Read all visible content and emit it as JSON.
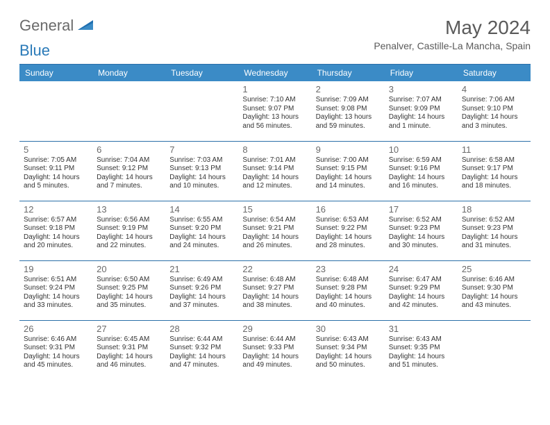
{
  "logo": {
    "text1": "General",
    "text2": "Blue"
  },
  "title": "May 2024",
  "location": "Penalver, Castille-La Mancha, Spain",
  "colors": {
    "header_bg": "#3b8bc6",
    "header_text": "#ffffff",
    "rule": "#2a6fa8",
    "body_text": "#333333",
    "muted": "#6a6a6a",
    "logo_blue": "#2a7ab8"
  },
  "weekdays": [
    "Sunday",
    "Monday",
    "Tuesday",
    "Wednesday",
    "Thursday",
    "Friday",
    "Saturday"
  ],
  "weeks": [
    [
      null,
      null,
      null,
      {
        "n": "1",
        "sr": "Sunrise: 7:10 AM",
        "ss": "Sunset: 9:07 PM",
        "dl": "Daylight: 13 hours and 56 minutes."
      },
      {
        "n": "2",
        "sr": "Sunrise: 7:09 AM",
        "ss": "Sunset: 9:08 PM",
        "dl": "Daylight: 13 hours and 59 minutes."
      },
      {
        "n": "3",
        "sr": "Sunrise: 7:07 AM",
        "ss": "Sunset: 9:09 PM",
        "dl": "Daylight: 14 hours and 1 minute."
      },
      {
        "n": "4",
        "sr": "Sunrise: 7:06 AM",
        "ss": "Sunset: 9:10 PM",
        "dl": "Daylight: 14 hours and 3 minutes."
      }
    ],
    [
      {
        "n": "5",
        "sr": "Sunrise: 7:05 AM",
        "ss": "Sunset: 9:11 PM",
        "dl": "Daylight: 14 hours and 5 minutes."
      },
      {
        "n": "6",
        "sr": "Sunrise: 7:04 AM",
        "ss": "Sunset: 9:12 PM",
        "dl": "Daylight: 14 hours and 7 minutes."
      },
      {
        "n": "7",
        "sr": "Sunrise: 7:03 AM",
        "ss": "Sunset: 9:13 PM",
        "dl": "Daylight: 14 hours and 10 minutes."
      },
      {
        "n": "8",
        "sr": "Sunrise: 7:01 AM",
        "ss": "Sunset: 9:14 PM",
        "dl": "Daylight: 14 hours and 12 minutes."
      },
      {
        "n": "9",
        "sr": "Sunrise: 7:00 AM",
        "ss": "Sunset: 9:15 PM",
        "dl": "Daylight: 14 hours and 14 minutes."
      },
      {
        "n": "10",
        "sr": "Sunrise: 6:59 AM",
        "ss": "Sunset: 9:16 PM",
        "dl": "Daylight: 14 hours and 16 minutes."
      },
      {
        "n": "11",
        "sr": "Sunrise: 6:58 AM",
        "ss": "Sunset: 9:17 PM",
        "dl": "Daylight: 14 hours and 18 minutes."
      }
    ],
    [
      {
        "n": "12",
        "sr": "Sunrise: 6:57 AM",
        "ss": "Sunset: 9:18 PM",
        "dl": "Daylight: 14 hours and 20 minutes."
      },
      {
        "n": "13",
        "sr": "Sunrise: 6:56 AM",
        "ss": "Sunset: 9:19 PM",
        "dl": "Daylight: 14 hours and 22 minutes."
      },
      {
        "n": "14",
        "sr": "Sunrise: 6:55 AM",
        "ss": "Sunset: 9:20 PM",
        "dl": "Daylight: 14 hours and 24 minutes."
      },
      {
        "n": "15",
        "sr": "Sunrise: 6:54 AM",
        "ss": "Sunset: 9:21 PM",
        "dl": "Daylight: 14 hours and 26 minutes."
      },
      {
        "n": "16",
        "sr": "Sunrise: 6:53 AM",
        "ss": "Sunset: 9:22 PM",
        "dl": "Daylight: 14 hours and 28 minutes."
      },
      {
        "n": "17",
        "sr": "Sunrise: 6:52 AM",
        "ss": "Sunset: 9:23 PM",
        "dl": "Daylight: 14 hours and 30 minutes."
      },
      {
        "n": "18",
        "sr": "Sunrise: 6:52 AM",
        "ss": "Sunset: 9:23 PM",
        "dl": "Daylight: 14 hours and 31 minutes."
      }
    ],
    [
      {
        "n": "19",
        "sr": "Sunrise: 6:51 AM",
        "ss": "Sunset: 9:24 PM",
        "dl": "Daylight: 14 hours and 33 minutes."
      },
      {
        "n": "20",
        "sr": "Sunrise: 6:50 AM",
        "ss": "Sunset: 9:25 PM",
        "dl": "Daylight: 14 hours and 35 minutes."
      },
      {
        "n": "21",
        "sr": "Sunrise: 6:49 AM",
        "ss": "Sunset: 9:26 PM",
        "dl": "Daylight: 14 hours and 37 minutes."
      },
      {
        "n": "22",
        "sr": "Sunrise: 6:48 AM",
        "ss": "Sunset: 9:27 PM",
        "dl": "Daylight: 14 hours and 38 minutes."
      },
      {
        "n": "23",
        "sr": "Sunrise: 6:48 AM",
        "ss": "Sunset: 9:28 PM",
        "dl": "Daylight: 14 hours and 40 minutes."
      },
      {
        "n": "24",
        "sr": "Sunrise: 6:47 AM",
        "ss": "Sunset: 9:29 PM",
        "dl": "Daylight: 14 hours and 42 minutes."
      },
      {
        "n": "25",
        "sr": "Sunrise: 6:46 AM",
        "ss": "Sunset: 9:30 PM",
        "dl": "Daylight: 14 hours and 43 minutes."
      }
    ],
    [
      {
        "n": "26",
        "sr": "Sunrise: 6:46 AM",
        "ss": "Sunset: 9:31 PM",
        "dl": "Daylight: 14 hours and 45 minutes."
      },
      {
        "n": "27",
        "sr": "Sunrise: 6:45 AM",
        "ss": "Sunset: 9:31 PM",
        "dl": "Daylight: 14 hours and 46 minutes."
      },
      {
        "n": "28",
        "sr": "Sunrise: 6:44 AM",
        "ss": "Sunset: 9:32 PM",
        "dl": "Daylight: 14 hours and 47 minutes."
      },
      {
        "n": "29",
        "sr": "Sunrise: 6:44 AM",
        "ss": "Sunset: 9:33 PM",
        "dl": "Daylight: 14 hours and 49 minutes."
      },
      {
        "n": "30",
        "sr": "Sunrise: 6:43 AM",
        "ss": "Sunset: 9:34 PM",
        "dl": "Daylight: 14 hours and 50 minutes."
      },
      {
        "n": "31",
        "sr": "Sunrise: 6:43 AM",
        "ss": "Sunset: 9:35 PM",
        "dl": "Daylight: 14 hours and 51 minutes."
      },
      null
    ]
  ]
}
